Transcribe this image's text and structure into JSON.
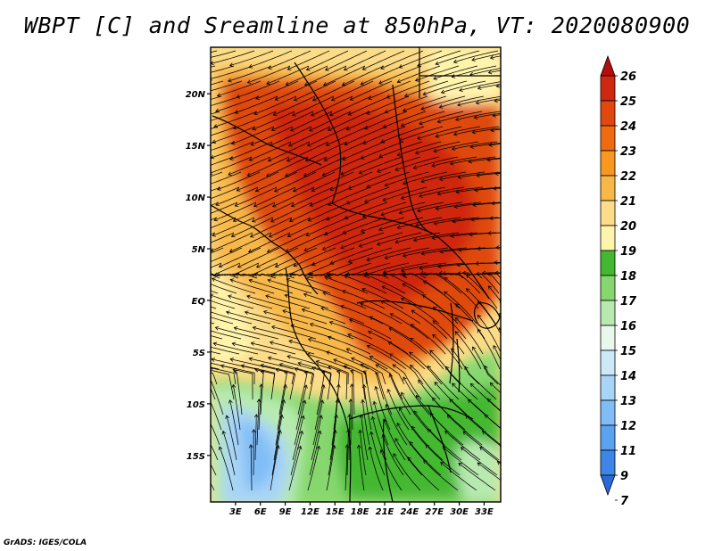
{
  "title": "WBPT [C] and Sreamline at 850hPa, VT: 2020080900",
  "credit": "GrADS: IGES/COLA",
  "map": {
    "variable": "Wet-bulb potential temperature",
    "units": "C",
    "level": "850hPa",
    "valid_time": "2020080900",
    "lat_range": [
      -19.5,
      24.5
    ],
    "lon_range": [
      0,
      35
    ],
    "lat_ticks": [
      "20N",
      "15N",
      "10N",
      "5N",
      "EQ",
      "5S",
      "10S",
      "15S"
    ],
    "lat_tick_values": [
      20,
      15,
      10,
      5,
      0,
      -5,
      -10,
      -15
    ],
    "lon_ticks": [
      "3E",
      "6E",
      "9E",
      "12E",
      "15E",
      "18E",
      "21E",
      "24E",
      "27E",
      "30E",
      "33E"
    ],
    "lon_tick_values": [
      3,
      6,
      9,
      12,
      15,
      18,
      21,
      24,
      27,
      30,
      33
    ]
  },
  "colorbar": {
    "labels": [
      "7",
      "9",
      "11",
      "12",
      "13",
      "14",
      "15",
      "16",
      "17",
      "18",
      "19",
      "20",
      "21",
      "22",
      "23",
      "24",
      "25",
      "26"
    ],
    "colors": [
      "#2a6ad8",
      "#3d86e8",
      "#5aa3f0",
      "#80bdf6",
      "#a8d4f8",
      "#cde9f8",
      "#e8f8ec",
      "#b8eab0",
      "#86d86e",
      "#44b830",
      "#fff4ac",
      "#fcdc88",
      "#f8b848",
      "#f89820",
      "#f06a10",
      "#e04810",
      "#d02810",
      "#b40e0a"
    ]
  },
  "colors": {
    "cool_blue": "#a8d4f8",
    "green": "#44b830",
    "light_yellow": "#fff4ac",
    "orange": "#f8b848",
    "red": "#e04810"
  }
}
